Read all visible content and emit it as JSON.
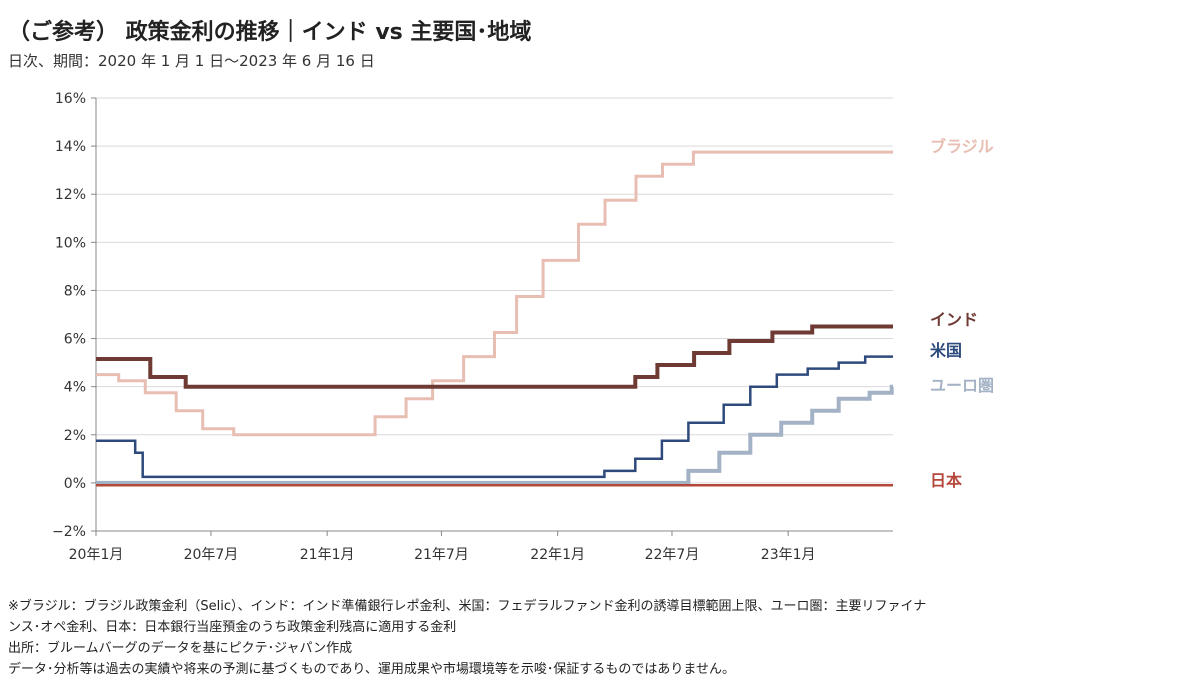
{
  "chart_data": {
    "type": "line",
    "title": "（ご参考） 政策金利の推移｜インド vs 主要国･地域",
    "subtitle": "日次、期間：2020 年 1 月 1 日～2023 年 6 月 16 日",
    "xlabel": "",
    "ylabel": "",
    "x_ticks": [
      "20年1月",
      "20年7月",
      "21年1月",
      "21年7月",
      "22年1月",
      "22年7月",
      "23年1月"
    ],
    "y_ticks": [
      "16%",
      "14%",
      "12%",
      "10%",
      "8%",
      "6%",
      "4%",
      "2%",
      "0%",
      "−2%"
    ],
    "ylim": [
      -2,
      16
    ],
    "xlim": [
      "2020-01-01",
      "2023-06-16"
    ],
    "grid": "horizontal",
    "legend": "labels at right end of each line",
    "series": [
      {
        "name": "ブラジル",
        "color": "#e8beb3",
        "line_width": 3,
        "points": [
          [
            "2020-01-01",
            4.5
          ],
          [
            "2020-02-06",
            4.25
          ],
          [
            "2020-03-19",
            3.75
          ],
          [
            "2020-05-07",
            3.0
          ],
          [
            "2020-06-18",
            2.25
          ],
          [
            "2020-08-06",
            2.0
          ],
          [
            "2021-03-18",
            2.75
          ],
          [
            "2021-05-06",
            3.5
          ],
          [
            "2021-06-17",
            4.25
          ],
          [
            "2021-08-05",
            5.25
          ],
          [
            "2021-09-23",
            6.25
          ],
          [
            "2021-10-28",
            7.75
          ],
          [
            "2021-12-09",
            9.25
          ],
          [
            "2022-02-03",
            10.75
          ],
          [
            "2022-03-17",
            11.75
          ],
          [
            "2022-05-05",
            12.75
          ],
          [
            "2022-06-16",
            13.25
          ],
          [
            "2022-08-04",
            13.75
          ],
          [
            "2023-06-16",
            13.75
          ]
        ]
      },
      {
        "name": "インド",
        "color": "#6e3a33",
        "line_width": 4,
        "points": [
          [
            "2020-01-01",
            5.15
          ],
          [
            "2020-03-27",
            4.4
          ],
          [
            "2020-05-22",
            4.0
          ],
          [
            "2022-05-04",
            4.4
          ],
          [
            "2022-06-08",
            4.9
          ],
          [
            "2022-08-05",
            5.4
          ],
          [
            "2022-09-30",
            5.9
          ],
          [
            "2022-12-07",
            6.25
          ],
          [
            "2023-02-08",
            6.5
          ],
          [
            "2023-06-16",
            6.5
          ]
        ]
      },
      {
        "name": "米国",
        "color": "#2e4a7c",
        "line_width": 2.5,
        "points": [
          [
            "2020-01-01",
            1.75
          ],
          [
            "2020-03-03",
            1.25
          ],
          [
            "2020-03-15",
            0.25
          ],
          [
            "2022-03-16",
            0.5
          ],
          [
            "2022-05-04",
            1.0
          ],
          [
            "2022-06-15",
            1.75
          ],
          [
            "2022-07-27",
            2.5
          ],
          [
            "2022-09-21",
            3.25
          ],
          [
            "2022-11-02",
            4.0
          ],
          [
            "2022-12-14",
            4.5
          ],
          [
            "2023-02-01",
            4.75
          ],
          [
            "2023-03-22",
            5.0
          ],
          [
            "2023-05-03",
            5.25
          ],
          [
            "2023-06-16",
            5.25
          ]
        ]
      },
      {
        "name": "ユーロ圏",
        "color": "#a4b2c6",
        "line_width": 4,
        "points": [
          [
            "2020-01-01",
            0.0
          ],
          [
            "2022-07-27",
            0.5
          ],
          [
            "2022-09-14",
            1.25
          ],
          [
            "2022-11-02",
            2.0
          ],
          [
            "2022-12-21",
            2.5
          ],
          [
            "2023-02-08",
            3.0
          ],
          [
            "2023-03-22",
            3.5
          ],
          [
            "2023-05-10",
            3.75
          ],
          [
            "2023-06-14",
            4.0
          ],
          [
            "2023-06-16",
            4.0
          ]
        ]
      },
      {
        "name": "日本",
        "color": "#b5473a",
        "line_width": 2.5,
        "points": [
          [
            "2020-01-01",
            -0.1
          ],
          [
            "2023-06-16",
            -0.1
          ]
        ]
      }
    ]
  },
  "notes": [
    "※ブラジル：ブラジル政策金利（Selic）、インド：インド準備銀行レポ金利、米国：フェデラルファンド金利の誘導目標範囲上限、ユーロ圏：主要リファイナ",
    "ンス･オペ金利、日本：日本銀行当座預金のうち政策金利残高に適用する金利",
    "出所：ブルームバーグのデータを基にピクテ･ジャパン作成",
    "データ･分析等は過去の実績や将来の予測に基づくものであり、運用成果や市場環境等を示唆･保証するものではありません。"
  ]
}
